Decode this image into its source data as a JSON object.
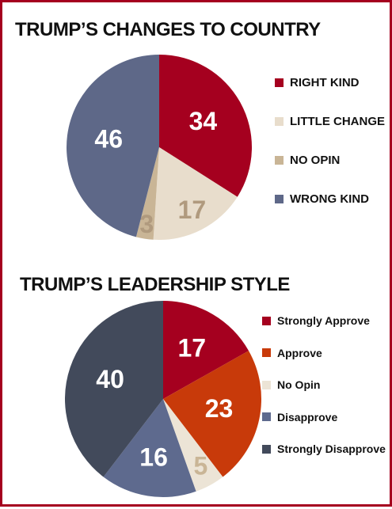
{
  "chart_data": [
    {
      "type": "pie",
      "title": "TRUMP’S CHANGES TO COUNTRY",
      "slices": [
        {
          "label": "RIGHT KIND",
          "value": 34,
          "color": "#a5001f",
          "text_color": "#ffffff"
        },
        {
          "label": "LITTLE CHANGE",
          "value": 17,
          "color": "#e8ddcc",
          "text_color": "#b09a7e"
        },
        {
          "label": "NO OPIN",
          "value": 3,
          "color": "#c9b596",
          "text_color": "#b09a7e"
        },
        {
          "label": "WRONG KIND",
          "value": 46,
          "color": "#5e6888",
          "text_color": "#ffffff"
        }
      ],
      "legend_position": "right"
    },
    {
      "type": "pie",
      "title": "TRUMP’S LEADERSHIP STYLE",
      "slices": [
        {
          "label": "Strongly Approve",
          "value": 17,
          "color": "#a5001f",
          "text_color": "#ffffff"
        },
        {
          "label": "Approve",
          "value": 23,
          "color": "#c83a0a",
          "text_color": "#ffffff"
        },
        {
          "label": "No Opin",
          "value": 5,
          "color": "#ece4d6",
          "text_color": "#c9b596"
        },
        {
          "label": "Disapprove",
          "value": 16,
          "color": "#5e6a8e",
          "text_color": "#ffffff"
        },
        {
          "label": "Strongly Disapprove",
          "value": 40,
          "color": "#424a5b",
          "text_color": "#ffffff"
        }
      ],
      "legend_position": "right"
    }
  ]
}
